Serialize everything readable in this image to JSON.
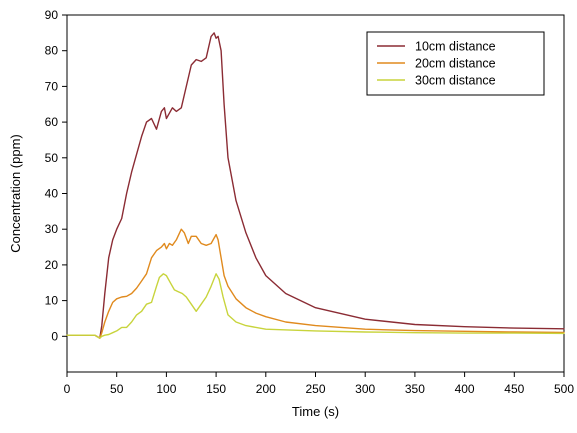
{
  "chart_data": {
    "type": "line",
    "title": "",
    "xlabel": "Time (s)",
    "ylabel": "Concentration (ppm)",
    "xlim": [
      0,
      500
    ],
    "ylim": [
      -10,
      90
    ],
    "xticks": [
      0,
      50,
      100,
      150,
      200,
      250,
      300,
      350,
      400,
      450,
      500
    ],
    "yticks": [
      0,
      10,
      20,
      30,
      40,
      50,
      60,
      70,
      80,
      90
    ],
    "grid": false,
    "legend_position": "top-right",
    "series": [
      {
        "name": "10cm distance",
        "color": "#8B2C34",
        "x": [
          0,
          28,
          33,
          35,
          38,
          42,
          46,
          50,
          55,
          60,
          65,
          70,
          75,
          80,
          85,
          90,
          95,
          98,
          100,
          103,
          106,
          110,
          115,
          120,
          125,
          130,
          135,
          140,
          145,
          148,
          150,
          152,
          155,
          158,
          162,
          170,
          180,
          190,
          200,
          220,
          250,
          300,
          350,
          400,
          450,
          500
        ],
        "y": [
          0.3,
          0.3,
          -0.5,
          3,
          12,
          22,
          27,
          30,
          33,
          40,
          46,
          51,
          56,
          60,
          61,
          58,
          63,
          64,
          61,
          62.5,
          64,
          63,
          64,
          70,
          76,
          77.5,
          77,
          78,
          84,
          85,
          83.5,
          84,
          80,
          65,
          50,
          38,
          29,
          22,
          17,
          12,
          8,
          4.8,
          3.3,
          2.7,
          2.3,
          2.1
        ]
      },
      {
        "name": "20cm distance",
        "color": "#E08A1E",
        "x": [
          0,
          28,
          33,
          35,
          38,
          42,
          46,
          50,
          55,
          60,
          65,
          70,
          75,
          80,
          85,
          90,
          95,
          98,
          100,
          103,
          106,
          110,
          115,
          118,
          122,
          125,
          130,
          135,
          140,
          145,
          148,
          150,
          152,
          155,
          158,
          162,
          170,
          180,
          190,
          200,
          220,
          250,
          300,
          350,
          400,
          450,
          500
        ],
        "y": [
          0.3,
          0.3,
          -0.5,
          1,
          4,
          7,
          9.5,
          10.5,
          11,
          11.2,
          12,
          13.5,
          15.5,
          17.5,
          22,
          24,
          25,
          26,
          24.5,
          26,
          25.5,
          27,
          30,
          29,
          26,
          28,
          28,
          26,
          25.5,
          26,
          27.5,
          28.5,
          27,
          22,
          17,
          14,
          10.5,
          8,
          6.5,
          5.5,
          4,
          3,
          2,
          1.6,
          1.4,
          1.2,
          1.1
        ]
      },
      {
        "name": "30cm distance",
        "color": "#C8D43C",
        "x": [
          0,
          28,
          33,
          35,
          38,
          42,
          46,
          50,
          55,
          60,
          65,
          70,
          75,
          80,
          85,
          90,
          93,
          97,
          100,
          104,
          108,
          112,
          116,
          120,
          125,
          130,
          135,
          140,
          145,
          150,
          153,
          157,
          162,
          170,
          180,
          200,
          250,
          300,
          350,
          400,
          450,
          500
        ],
        "y": [
          0.3,
          0.3,
          -0.5,
          0,
          0.3,
          0.5,
          1,
          1.5,
          2.5,
          2.5,
          4,
          6,
          7,
          9,
          9.5,
          14,
          16.5,
          17.5,
          17,
          15,
          13,
          12.5,
          12,
          11,
          9,
          7,
          9,
          11,
          14,
          17.5,
          16,
          11,
          6,
          4,
          3,
          2,
          1.5,
          1.2,
          1,
          0.9,
          0.9,
          0.8
        ]
      }
    ]
  }
}
